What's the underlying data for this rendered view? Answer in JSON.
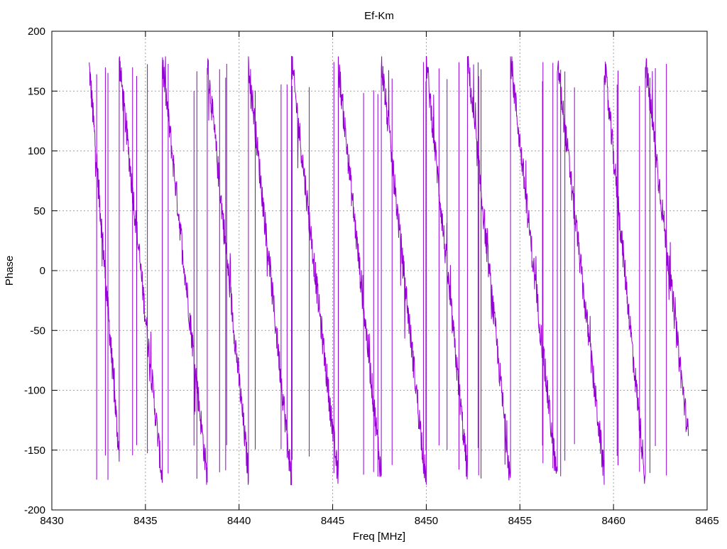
{
  "chart_data": {
    "type": "line",
    "title": "Ef-Km",
    "xlabel": "Freq [MHz]",
    "ylabel": "Phase",
    "xlim": [
      8430,
      8465
    ],
    "ylim": [
      -200,
      200
    ],
    "xticks": [
      8430,
      8435,
      8440,
      8445,
      8450,
      8455,
      8460,
      8465
    ],
    "yticks": [
      -200,
      -150,
      -100,
      -50,
      0,
      50,
      100,
      150,
      200
    ],
    "grid": true,
    "legend": "none",
    "series": [
      {
        "color": "#9400d3",
        "wraps": [
          {
            "start": 8432.0,
            "end": 8433.6,
            "phase_start": 170,
            "phase_end": -155
          },
          {
            "start": 8433.6,
            "end": 8435.9,
            "phase_start": 175,
            "phase_end": -175
          },
          {
            "start": 8435.9,
            "end": 8438.3,
            "phase_start": 175,
            "phase_end": -175
          },
          {
            "start": 8438.3,
            "end": 8440.5,
            "phase_start": 175,
            "phase_end": -170
          },
          {
            "start": 8440.5,
            "end": 8442.8,
            "phase_start": 175,
            "phase_end": -175
          },
          {
            "start": 8442.8,
            "end": 8445.3,
            "phase_start": 175,
            "phase_end": -175
          },
          {
            "start": 8445.3,
            "end": 8447.6,
            "phase_start": 172,
            "phase_end": -172
          },
          {
            "start": 8447.6,
            "end": 8450.0,
            "phase_start": 175,
            "phase_end": -178
          },
          {
            "start": 8450.0,
            "end": 8452.2,
            "phase_start": 175,
            "phase_end": -170
          },
          {
            "start": 8452.2,
            "end": 8454.5,
            "phase_start": 178,
            "phase_end": -175
          },
          {
            "start": 8454.5,
            "end": 8457.0,
            "phase_start": 178,
            "phase_end": -178
          },
          {
            "start": 8457.0,
            "end": 8459.5,
            "phase_start": 175,
            "phase_end": -170
          },
          {
            "start": 8459.5,
            "end": 8461.7,
            "phase_start": 175,
            "phase_end": -175
          },
          {
            "start": 8461.7,
            "end": 8464.0,
            "phase_start": 175,
            "phase_end": -140
          }
        ]
      }
    ]
  }
}
